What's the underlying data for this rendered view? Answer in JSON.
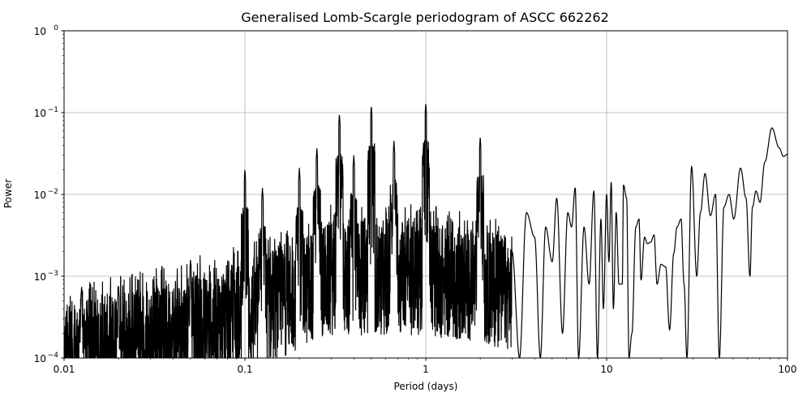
{
  "chart_data": {
    "type": "line",
    "title": "Generalised Lomb-Scargle periodogram of ASCC 662262",
    "xlabel": "Period (days)",
    "ylabel": "Power",
    "xscale": "log",
    "yscale": "log",
    "xlim": [
      0.01,
      100
    ],
    "ylim": [
      0.0001,
      1
    ],
    "grid": true,
    "x_ticks": [
      "0.01",
      "0.1",
      "1",
      "10",
      "100"
    ],
    "y_ticks": [
      {
        "base": "10",
        "exp": "0"
      },
      {
        "base": "10",
        "exp": "−1"
      },
      {
        "base": "10",
        "exp": "−2"
      },
      {
        "base": "10",
        "exp": "−3"
      },
      {
        "base": "10",
        "exp": "−4"
      }
    ],
    "line_color": "#000000",
    "noise_envelope": [
      {
        "period": 0.01,
        "power": 0.0003
      },
      {
        "period": 0.03,
        "power": 0.0005
      },
      {
        "period": 0.1,
        "power": 0.001
      },
      {
        "period": 0.3,
        "power": 0.003
      },
      {
        "period": 1.0,
        "power": 0.003
      },
      {
        "period": 3.0,
        "power": 0.002
      }
    ],
    "peaks": [
      {
        "period": 0.0125,
        "power": 0.00075
      },
      {
        "period": 0.02,
        "power": 0.00075
      },
      {
        "period": 0.05,
        "power": 0.0016
      },
      {
        "period": 0.1,
        "power": 0.02
      },
      {
        "period": 0.125,
        "power": 0.012
      },
      {
        "period": 0.2,
        "power": 0.021
      },
      {
        "period": 0.25,
        "power": 0.037
      },
      {
        "period": 0.333,
        "power": 0.095
      },
      {
        "period": 0.4,
        "power": 0.03
      },
      {
        "period": 0.5,
        "power": 0.12
      },
      {
        "period": 0.667,
        "power": 0.045
      },
      {
        "period": 1.0,
        "power": 0.13
      },
      {
        "period": 2.0,
        "power": 0.05
      },
      {
        "period": 6.7,
        "power": 0.012
      },
      {
        "period": 10.0,
        "power": 0.01
      },
      {
        "period": 10.5,
        "power": 0.014
      },
      {
        "period": 12.4,
        "power": 0.013
      },
      {
        "period": 15.0,
        "power": 0.005
      },
      {
        "period": 18.5,
        "power": 0.005
      },
      {
        "period": 21.0,
        "power": 0.0014
      },
      {
        "period": 26.0,
        "power": 0.007
      },
      {
        "period": 29.5,
        "power": 0.022
      },
      {
        "period": 35.0,
        "power": 0.018
      },
      {
        "period": 40.0,
        "power": 0.01
      },
      {
        "period": 48.0,
        "power": 0.01
      },
      {
        "period": 55.0,
        "power": 0.021
      },
      {
        "period": 67.0,
        "power": 0.011
      },
      {
        "period": 82.0,
        "power": 0.065
      },
      {
        "period": 100.0,
        "power": 0.03
      }
    ],
    "smooth_tail": [
      [
        3.0,
        0.002
      ],
      [
        3.3,
        0.0001
      ],
      [
        3.6,
        0.006
      ],
      [
        4.0,
        0.003
      ],
      [
        4.3,
        0.0001
      ],
      [
        4.6,
        0.004
      ],
      [
        5.0,
        0.0015
      ],
      [
        5.3,
        0.009
      ],
      [
        5.7,
        0.0002
      ],
      [
        6.1,
        0.006
      ],
      [
        6.4,
        0.004
      ],
      [
        6.7,
        0.012
      ],
      [
        7.0,
        0.0001
      ],
      [
        7.5,
        0.004
      ],
      [
        8.0,
        0.0008
      ],
      [
        8.5,
        0.011
      ],
      [
        8.9,
        0.0001
      ],
      [
        9.3,
        0.005
      ],
      [
        9.6,
        0.0004
      ],
      [
        10.0,
        0.01
      ],
      [
        10.3,
        0.0015
      ],
      [
        10.6,
        0.014
      ],
      [
        10.9,
        0.0004
      ],
      [
        11.3,
        0.006
      ],
      [
        11.7,
        0.0008
      ],
      [
        12.2,
        0.0008
      ],
      [
        12.4,
        0.013
      ],
      [
        12.9,
        0.009
      ],
      [
        13.3,
        0.0001
      ],
      [
        13.8,
        0.0002
      ],
      [
        14.5,
        0.004
      ],
      [
        15.1,
        0.005
      ],
      [
        15.5,
        0.0009
      ],
      [
        16.2,
        0.003
      ],
      [
        16.8,
        0.0025
      ],
      [
        17.5,
        0.0026
      ],
      [
        18.3,
        0.0032
      ],
      [
        19.0,
        0.0008
      ],
      [
        20.0,
        0.0014
      ],
      [
        21.2,
        0.0013
      ],
      [
        22.3,
        0.00022
      ],
      [
        23.5,
        0.0019
      ],
      [
        24.5,
        0.004
      ],
      [
        25.8,
        0.005
      ],
      [
        26.8,
        0.0008
      ],
      [
        27.8,
        0.0001
      ],
      [
        29.5,
        0.022
      ],
      [
        31.5,
        0.001
      ],
      [
        33.0,
        0.006
      ],
      [
        35.0,
        0.018
      ],
      [
        37.5,
        0.0055
      ],
      [
        40.0,
        0.01
      ],
      [
        42.0,
        0.0001
      ],
      [
        44.5,
        0.007
      ],
      [
        47.5,
        0.01
      ],
      [
        50.5,
        0.005
      ],
      [
        55.0,
        0.021
      ],
      [
        59.0,
        0.009
      ],
      [
        62.0,
        0.001
      ],
      [
        64.0,
        0.007
      ],
      [
        67.0,
        0.011
      ],
      [
        70.5,
        0.008
      ],
      [
        75.0,
        0.025
      ],
      [
        82.0,
        0.065
      ],
      [
        90.0,
        0.037
      ],
      [
        95.0,
        0.029
      ],
      [
        100.0,
        0.031
      ]
    ]
  }
}
